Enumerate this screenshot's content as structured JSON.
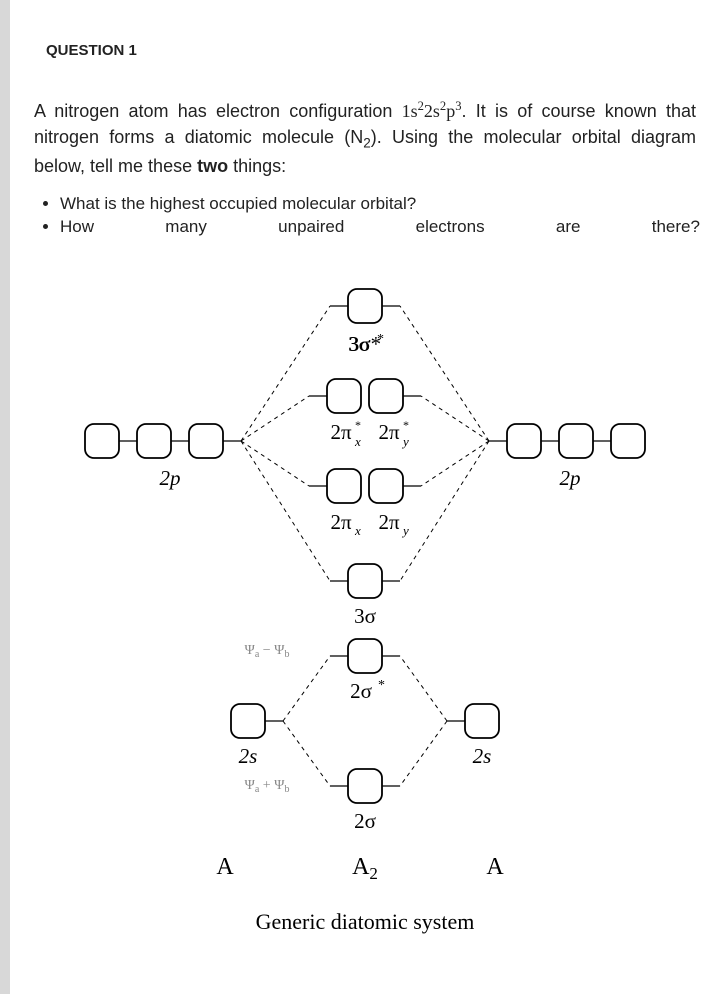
{
  "header": {
    "question_label": "QUESTION 1"
  },
  "body": {
    "para_html": "A nitrogen atom has electron configuration <span class='serif'>1s<span class='sup'>2</span>2s<span class='sup'>2</span>p<span class='sup'>3</span></span>. It is of course known that nitrogen forms a diatomic molecule (N<span class='sub'>2</span>). Using the molecular orbital diagram below, tell me these <b>two</b> things:",
    "bullet1": "What is the highest occupied molecular orbital?",
    "bullet2_words": [
      "How",
      "many",
      "unpaired",
      "electrons",
      "are",
      "there?"
    ]
  },
  "diagram": {
    "labels": {
      "sigma3star": "3σ*",
      "pi2xstar": "2π",
      "pi2ystar": "2π",
      "pi2x": "2π",
      "pi2y": "2π",
      "sigma3": "3σ",
      "sigma2star": "2σ*",
      "sigma2": "2σ",
      "ao_2p": "2p",
      "ao_2s": "2s",
      "atom_A": "A",
      "molecule": "A",
      "atom_sub2": "2",
      "psi_minus": "Ψ",
      "psi_plus": "Ψ",
      "psi_a": "a",
      "psi_b": "b"
    },
    "caption": "Generic diatomic system"
  }
}
